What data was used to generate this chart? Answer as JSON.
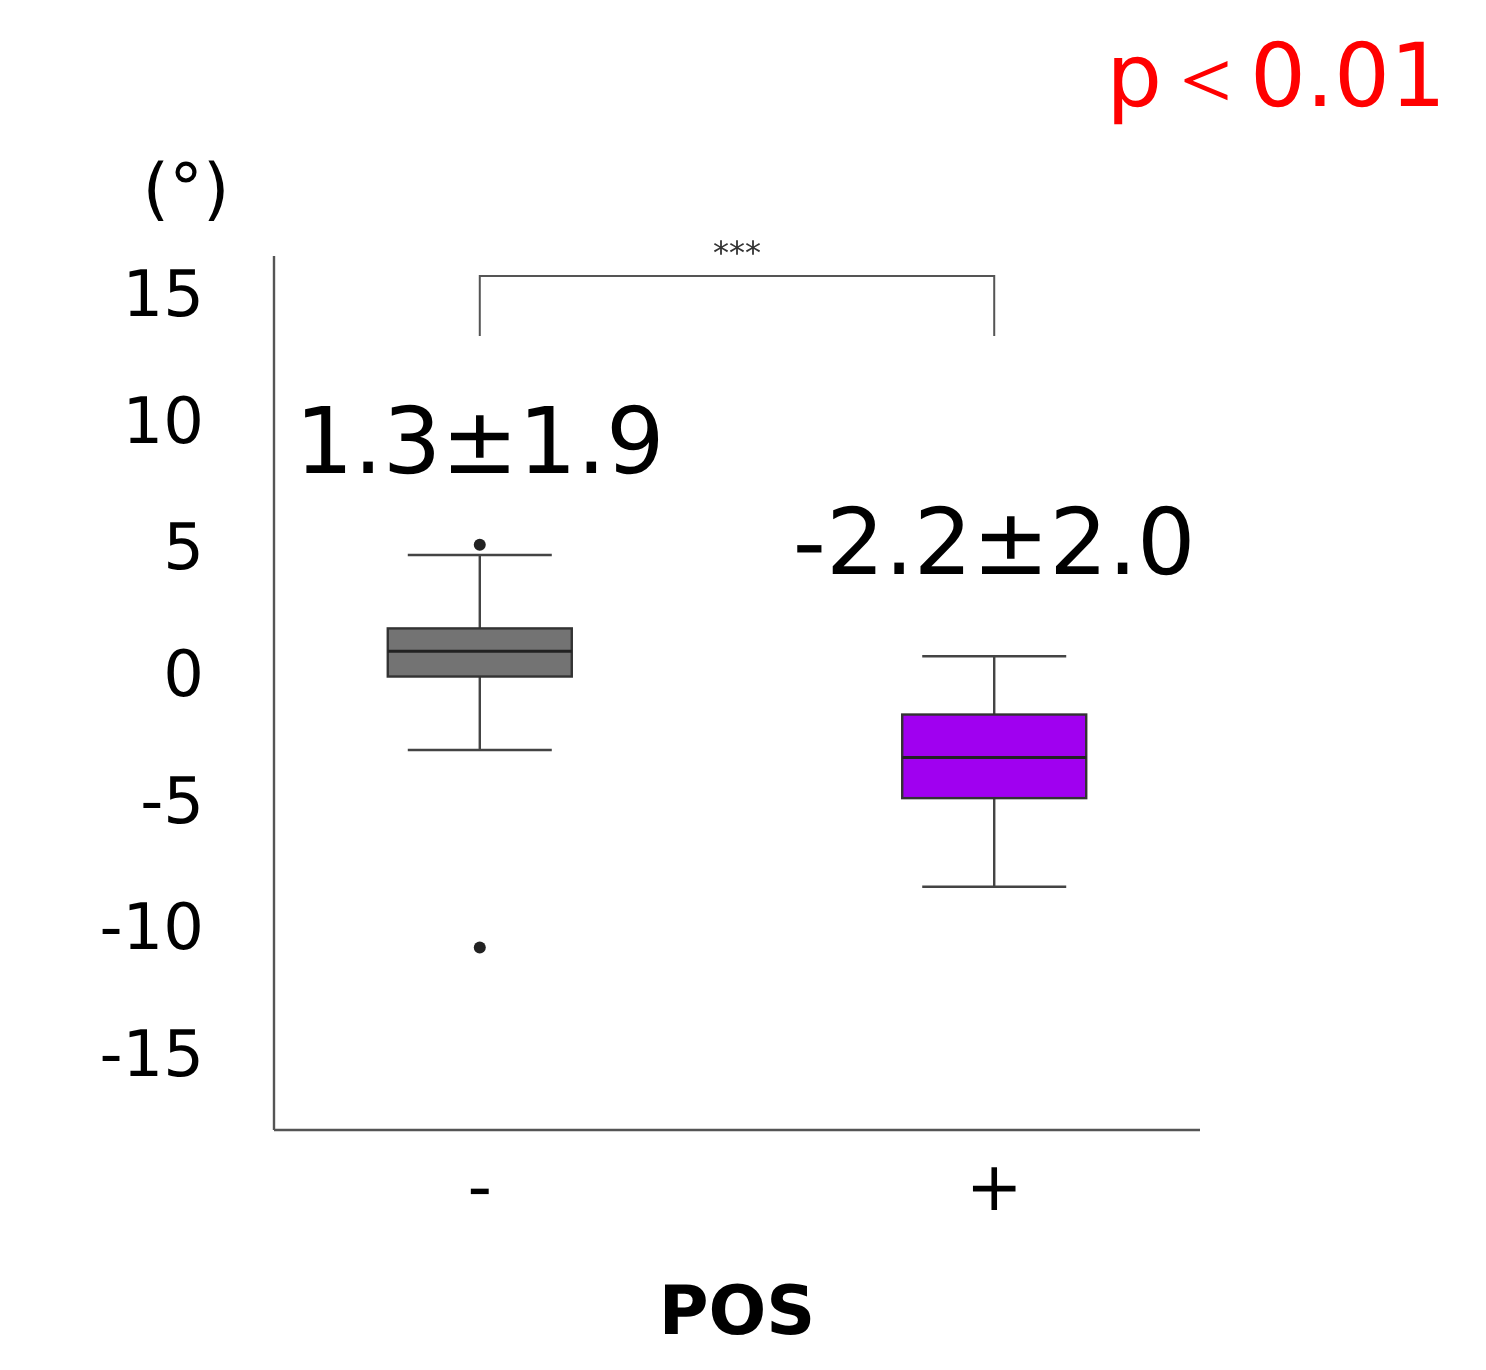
{
  "chart_data": {
    "type": "box",
    "xlabel": "POS",
    "ylabel": "(°)",
    "categories": [
      "-",
      "+"
    ],
    "colors": [
      "#737373",
      "#a000f0"
    ],
    "boxes": [
      {
        "low": -3.0,
        "q1": -0.1,
        "median": 0.9,
        "q3": 1.8,
        "high": 4.7,
        "outliers": [
          5.1,
          -10.8
        ]
      },
      {
        "low": -8.4,
        "q1": -4.9,
        "median": -3.3,
        "q3": -1.6,
        "high": 0.7
      }
    ],
    "ylim": [
      -18,
      16.5
    ],
    "yticks": [
      15,
      10,
      5,
      0,
      -5,
      -10,
      -15
    ],
    "grid": false,
    "annotations": [
      "***",
      "p＜0.01",
      "1.3±1.9",
      "-2.2±2.0"
    ]
  }
}
